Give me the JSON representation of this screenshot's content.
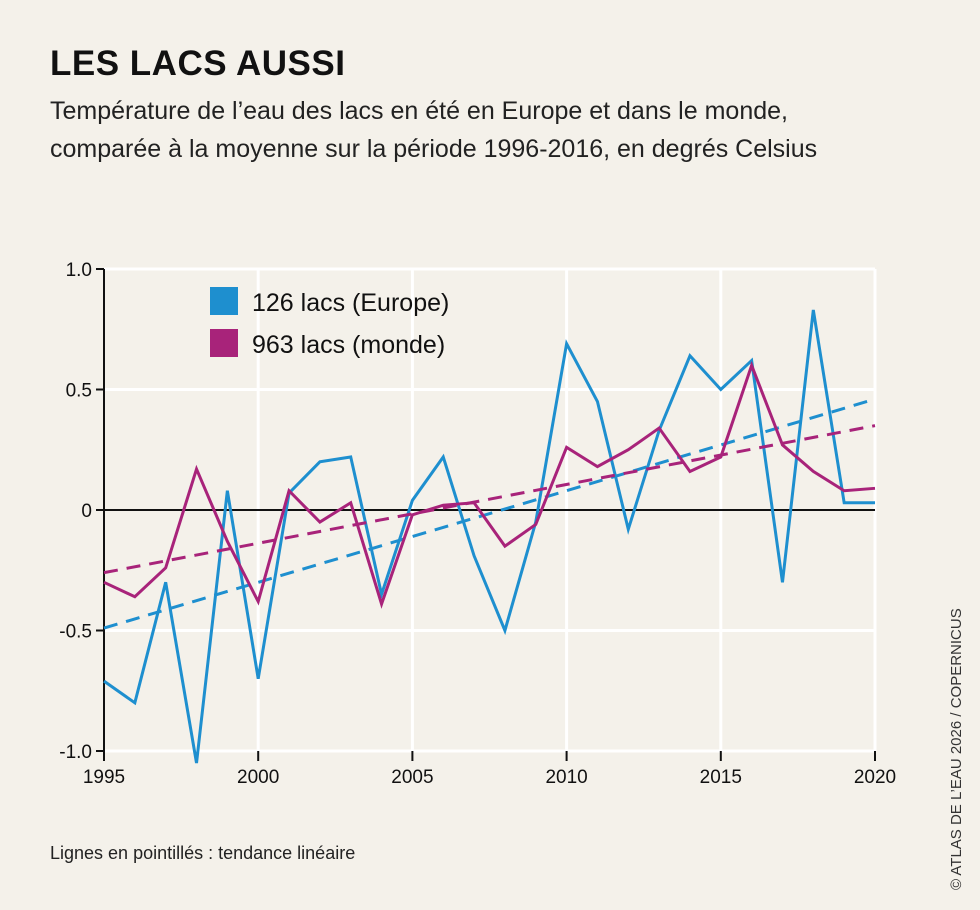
{
  "title": "LES LACS AUSSI",
  "subtitle_line1": "Température de l’eau des lacs en été en Europe et dans le monde,",
  "subtitle_line2": "comparée à la moyenne sur la période 1996-2016, en degrés Celsius",
  "note": "Lignes en pointillés : tendance linéaire",
  "credit": "© ATLAS DE L’EAU 2026 / COPERNICUS",
  "chart_data": {
    "type": "line",
    "title": "LES LACS AUSSI",
    "xlabel": "",
    "ylabel": "",
    "xlim": [
      1995,
      2020
    ],
    "ylim": [
      -1.0,
      1.0
    ],
    "grid": true,
    "legend_position": "top-left",
    "x_ticks": [
      "1995",
      "2000",
      "2005",
      "2010",
      "2015",
      "2020"
    ],
    "y_ticks": [
      "1.0",
      "0.5",
      "0",
      "-0.5",
      "-1.0"
    ],
    "y_tick_values": [
      1.0,
      0.5,
      0,
      -0.5,
      -1.0
    ],
    "x_tick_values": [
      1995,
      2000,
      2005,
      2010,
      2015,
      2020
    ],
    "x": [
      1995,
      1996,
      1997,
      1998,
      1999,
      2000,
      2001,
      2002,
      2003,
      2004,
      2005,
      2006,
      2007,
      2008,
      2009,
      2010,
      2011,
      2012,
      2013,
      2014,
      2015,
      2016,
      2017,
      2018,
      2019,
      2020
    ],
    "series": [
      {
        "name": "126 lacs (Europe)",
        "color": "#1e8fcf",
        "values": [
          -0.71,
          -0.8,
          -0.3,
          -1.05,
          0.08,
          -0.7,
          0.07,
          0.2,
          0.22,
          -0.35,
          0.04,
          0.22,
          -0.19,
          -0.5,
          -0.05,
          0.69,
          0.45,
          -0.08,
          0.33,
          0.64,
          0.5,
          0.62,
          -0.3,
          0.83,
          0.03,
          0.03
        ],
        "trend": [
          -0.49,
          0.46
        ]
      },
      {
        "name": "963 lacs (monde)",
        "color": "#a8237a",
        "values": [
          -0.3,
          -0.36,
          -0.24,
          0.17,
          -0.13,
          -0.38,
          0.08,
          -0.05,
          0.03,
          -0.39,
          -0.02,
          0.02,
          0.03,
          -0.15,
          -0.06,
          0.26,
          0.18,
          0.25,
          0.34,
          0.16,
          0.22,
          0.6,
          0.27,
          0.16,
          0.08,
          0.09
        ],
        "trend": [
          -0.26,
          0.35
        ]
      }
    ]
  }
}
